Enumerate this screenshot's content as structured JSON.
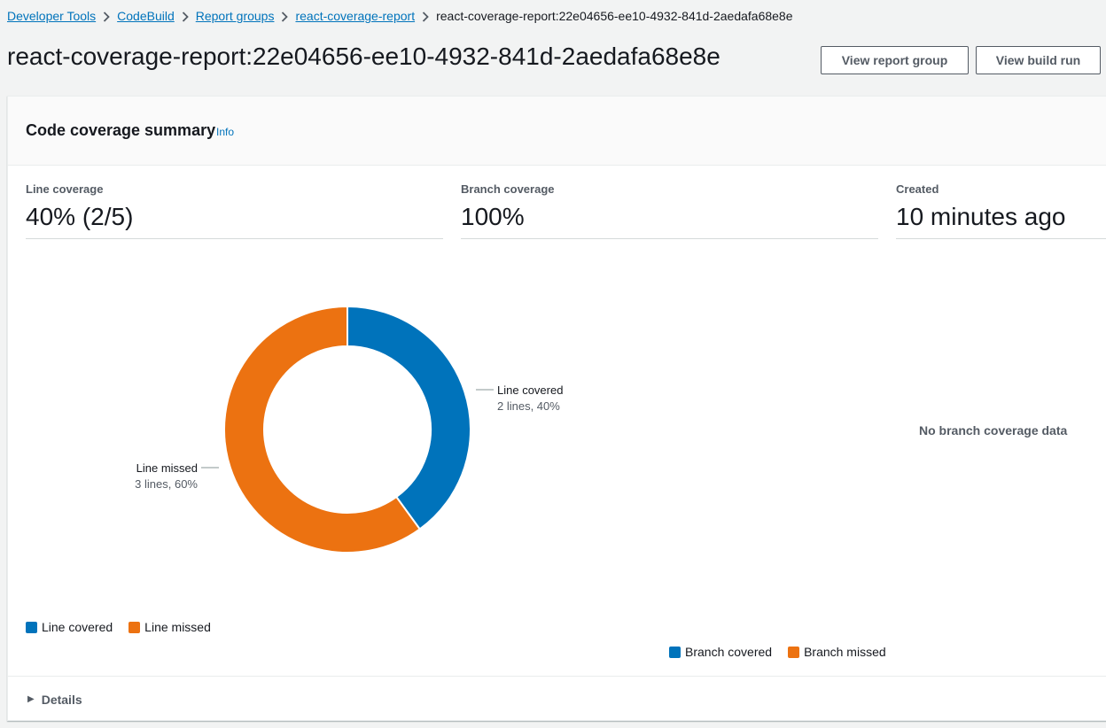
{
  "breadcrumbs": [
    {
      "label": "Developer Tools"
    },
    {
      "label": "CodeBuild"
    },
    {
      "label": "Report groups"
    },
    {
      "label": "react-coverage-report"
    },
    {
      "label": "react-coverage-report:22e04656-ee10-4932-841d-2aedafa68e8e"
    }
  ],
  "header": {
    "title": "react-coverage-report:22e04656-ee10-4932-841d-2aedafa68e8e",
    "view_report_group_label": "View report group",
    "view_build_run_label": "View build run"
  },
  "summary": {
    "title": "Code coverage summary",
    "info_label": "Info",
    "line_coverage": {
      "label": "Line coverage",
      "value": "40% (2/5)"
    },
    "branch_coverage": {
      "label": "Branch coverage",
      "value": "100%"
    },
    "created": {
      "label": "Created",
      "value": "10 minutes ago"
    }
  },
  "chart_data": [
    {
      "type": "pie",
      "variant": "donut",
      "slices": [
        {
          "name": "Line covered",
          "value": 2,
          "percent": 40,
          "label_line1": "Line covered",
          "label_line2": "2 lines, 40%",
          "color": "#0073bb"
        },
        {
          "name": "Line missed",
          "value": 3,
          "percent": 60,
          "label_line1": "Line missed",
          "label_line2": "3 lines, 60%",
          "color": "#ec7211"
        }
      ],
      "legend": {
        "placement": "bottom-left",
        "entries": [
          "Line covered",
          "Line missed"
        ]
      }
    },
    {
      "type": "pie",
      "variant": "donut",
      "slices": [],
      "empty_message": "No branch coverage data",
      "legend": {
        "placement": "bottom",
        "entries": [
          "Branch covered",
          "Branch missed"
        ]
      }
    }
  ],
  "legend_colors": {
    "covered": "#0073bb",
    "missed": "#ec7211"
  },
  "details": {
    "label": "Details"
  }
}
